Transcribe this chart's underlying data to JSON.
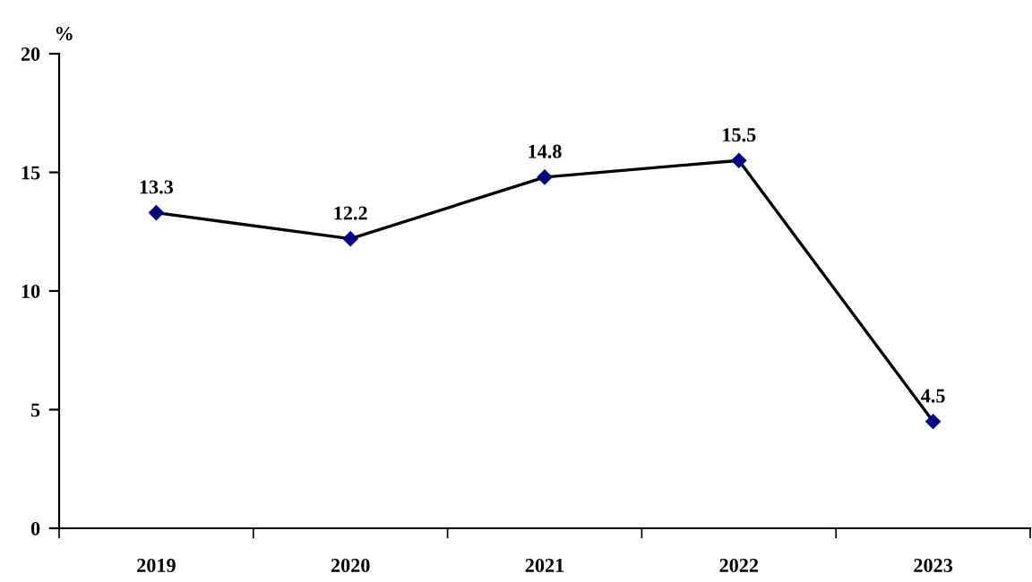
{
  "chart_data": {
    "type": "line",
    "ylabel": "%",
    "categories": [
      "2019",
      "2020",
      "2021",
      "2022",
      "2023"
    ],
    "series": [
      {
        "color": "#000080",
        "values": [
          13.3,
          12.2,
          14.8,
          15.5,
          4.5
        ]
      }
    ],
    "ylim": [
      0,
      20
    ],
    "yticks": [
      0,
      5,
      10,
      15,
      20
    ],
    "grid": false,
    "legend": false,
    "marker": "diamond",
    "line_style": "solid",
    "data_labels": true
  }
}
